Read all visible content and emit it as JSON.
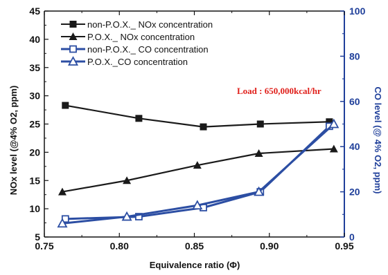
{
  "chart_data": {
    "type": "line",
    "xlabel": "Equivalence ratio (Φ)",
    "ylabel_left": "NOx level (@4% O2, ppm)",
    "ylabel_right": "CO level (@ 4% O2, ppm)",
    "xlim": [
      0.75,
      0.95
    ],
    "ylim_left": [
      5,
      45
    ],
    "ylim_right": [
      0,
      100
    ],
    "x_ticks": [
      "0.75",
      "0.80",
      "0.85",
      "0.90",
      "0.95"
    ],
    "y_left_ticks": [
      "5",
      "10",
      "15",
      "20",
      "25",
      "30",
      "35",
      "40",
      "45"
    ],
    "y_right_ticks": [
      "0",
      "20",
      "40",
      "60",
      "80",
      "100"
    ],
    "annotation": "Load : 650,000kcal/hr",
    "grid": false,
    "legend_position": "top-left",
    "series": [
      {
        "name": "non-P.O.X._ NOx concentration",
        "axis": "left",
        "marker": "square-filled",
        "color": "#1a1a1a",
        "x": [
          0.764,
          0.813,
          0.856,
          0.894,
          0.94
        ],
        "y": [
          28.3,
          26.0,
          24.5,
          25.0,
          25.4
        ]
      },
      {
        "name": "P.O.X._ NOx concentration",
        "axis": "left",
        "marker": "triangle-filled",
        "color": "#1a1a1a",
        "x": [
          0.762,
          0.805,
          0.852,
          0.893,
          0.943
        ],
        "y": [
          13.0,
          15.0,
          17.7,
          19.8,
          20.6
        ]
      },
      {
        "name": "non-P.O.X._ CO concentration",
        "axis": "right",
        "marker": "square-open",
        "color": "#2c4ea3",
        "x": [
          0.764,
          0.813,
          0.856,
          0.894,
          0.94
        ],
        "y": [
          8,
          9,
          13,
          20,
          49
        ]
      },
      {
        "name": "P.O.X._CO concentration",
        "axis": "right",
        "marker": "triangle-open",
        "color": "#2c4ea3",
        "x": [
          0.762,
          0.805,
          0.852,
          0.893,
          0.943
        ],
        "y": [
          6,
          9,
          14,
          20,
          50
        ]
      }
    ]
  },
  "colors": {
    "axis_left": "#111111",
    "axis_right": "#1f3f9a",
    "annotation": "#e0201b"
  }
}
